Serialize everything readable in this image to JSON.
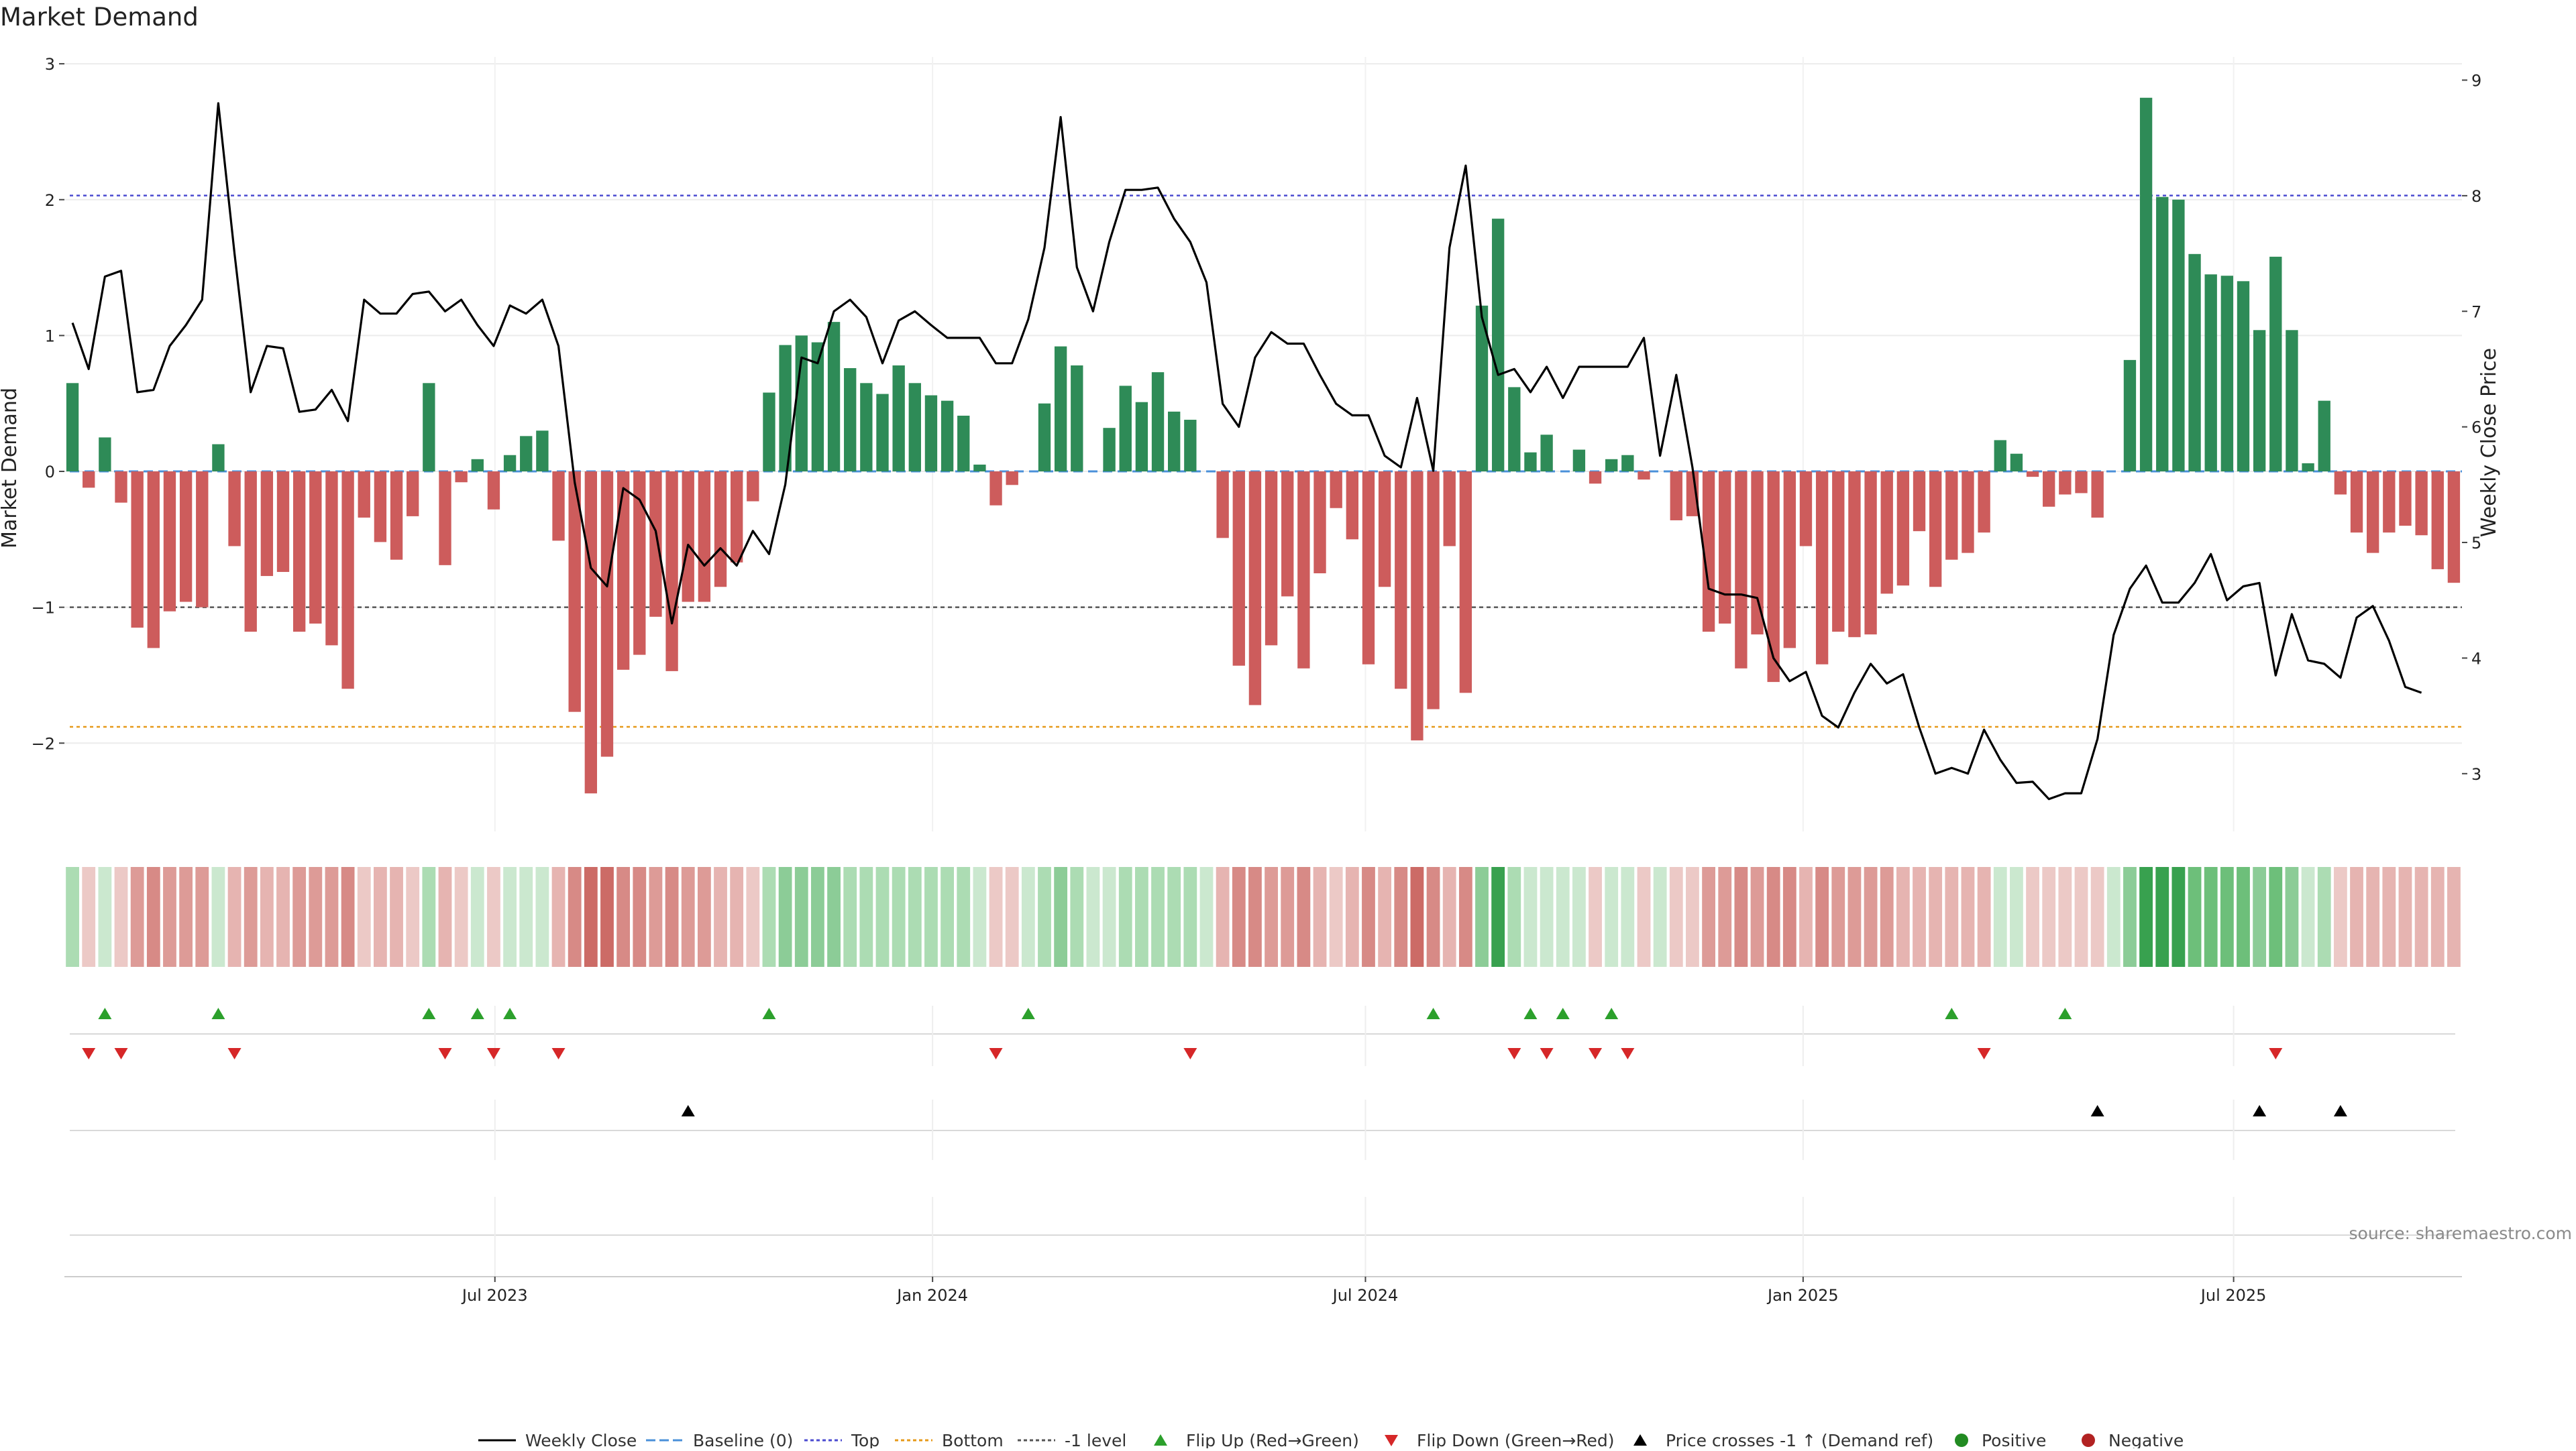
{
  "chart_data": {
    "type": "bar",
    "title": "Market Demand",
    "ylabel": "Market Demand",
    "y2label": "Weekly Close Price",
    "source": "source: sharemaestro.com",
    "ylim": [
      -2.65,
      3.05
    ],
    "y2lim": [
      2.5,
      9.2
    ],
    "yticks": [
      3,
      2,
      1,
      0,
      -1,
      -2
    ],
    "ytick_labels": [
      "3",
      "2",
      "1",
      "0",
      "−1",
      "−2"
    ],
    "y2ticks": [
      9,
      8,
      7,
      6,
      5,
      4,
      3
    ],
    "reference_lines": {
      "top": 2.03,
      "bottom": -1.88,
      "minus_one": -1,
      "baseline": 0
    },
    "x_start": "2023-01-01",
    "x_end": "2025-10-05",
    "x_tick_labels": [
      "Jul 2023",
      "Jan 2024",
      "Jul 2024",
      "Jan 2025",
      "Jul 2025"
    ],
    "x_tick_dates": [
      "2023-07-01",
      "2024-01-01",
      "2024-07-01",
      "2025-01-01",
      "2025-07-01"
    ],
    "demand": [
      0.65,
      -0.12,
      0.25,
      -0.23,
      -1.15,
      -1.3,
      -1.03,
      -0.96,
      -1,
      0.2,
      -0.55,
      -1.18,
      -0.77,
      -0.74,
      -1.18,
      -1.12,
      -1.28,
      -1.6,
      -0.34,
      -0.52,
      -0.65,
      -0.33,
      0.65,
      -0.69,
      -0.08,
      0.09,
      -0.28,
      0.12,
      0.26,
      0.3,
      -0.51,
      -1.77,
      -2.37,
      -2.1,
      -1.46,
      -1.35,
      -1.07,
      -1.47,
      -0.96,
      -0.96,
      -0.85,
      -0.67,
      -0.22,
      0.58,
      0.93,
      1.0,
      0.95,
      1.1,
      0.76,
      0.65,
      0.57,
      0.78,
      0.65,
      0.56,
      0.52,
      0.41,
      0.05,
      -0.25,
      -0.1,
      0.0,
      0.5,
      0.92,
      0.78,
      0.0,
      0.32,
      0.63,
      0.51,
      0.73,
      0.44,
      0.38,
      0.0,
      -0.49,
      -1.43,
      -1.72,
      -1.28,
      -0.92,
      -1.45,
      -0.75,
      -0.27,
      -0.5,
      -1.42,
      -0.85,
      -1.6,
      -1.98,
      -1.75,
      -0.55,
      -1.63,
      1.22,
      1.86,
      0.62,
      0.14,
      0.27,
      0.0,
      0.16,
      -0.09,
      0.09,
      0.12,
      -0.06,
      0.0,
      -0.36,
      -0.33,
      -1.18,
      -1.12,
      -1.45,
      -1.2,
      -1.55,
      -1.3,
      -0.55,
      -1.42,
      -1.18,
      -1.22,
      -1.2,
      -0.9,
      -0.84,
      -0.44,
      -0.85,
      -0.65,
      -0.6,
      -0.45,
      0.23,
      0.13,
      -0.04,
      -0.26,
      -0.17,
      -0.16,
      -0.34,
      0.0,
      0.82,
      2.75,
      2.02,
      2.0,
      1.6,
      1.45,
      1.44,
      1.4,
      1.04,
      1.58,
      1.04,
      0.06,
      0.52,
      -0.17,
      -0.45,
      -0.6,
      -0.45,
      -0.4,
      -0.47,
      -0.72,
      -0.82
    ],
    "weekly_close": [
      6.9,
      6.5,
      7.3,
      7.35,
      6.3,
      6.32,
      6.7,
      6.88,
      7.1,
      8.8,
      7.5,
      6.3,
      6.7,
      6.68,
      6.13,
      6.15,
      6.32,
      6.05,
      7.1,
      6.98,
      6.98,
      7.15,
      7.17,
      7.0,
      7.1,
      6.88,
      6.7,
      7.05,
      6.98,
      7.1,
      6.7,
      5.52,
      4.78,
      4.62,
      5.47,
      5.37,
      5.1,
      4.3,
      4.98,
      4.8,
      4.95,
      4.8,
      5.1,
      4.9,
      5.5,
      6.6,
      6.55,
      7.0,
      7.1,
      6.95,
      6.55,
      6.92,
      7.0,
      6.88,
      6.77,
      6.77,
      6.77,
      6.55,
      6.55,
      6.93,
      7.55,
      8.68,
      7.38,
      7.0,
      7.6,
      8.05,
      8.05,
      8.07,
      7.8,
      7.6,
      7.25,
      6.2,
      6.0,
      6.6,
      6.82,
      6.72,
      6.72,
      6.45,
      6.2,
      6.1,
      6.1,
      5.75,
      5.65,
      6.25,
      5.62,
      7.55,
      8.26,
      6.95,
      6.45,
      6.5,
      6.3,
      6.52,
      6.25,
      6.52,
      6.52,
      6.52,
      6.52,
      6.77,
      5.75,
      6.45,
      5.65,
      4.6,
      4.55,
      4.55,
      4.52,
      4.0,
      3.8,
      3.88,
      3.5,
      3.4,
      3.7,
      3.95,
      3.78,
      3.86,
      3.4,
      3.0,
      3.05,
      3.0,
      3.38,
      3.12,
      2.92,
      2.93,
      2.78,
      2.83,
      2.83,
      3.3,
      4.2,
      4.6,
      4.8,
      4.48,
      4.48,
      4.65,
      4.9,
      4.5,
      4.62,
      4.65,
      3.85,
      4.38,
      3.98,
      3.95,
      3.83,
      4.35,
      4.45,
      4.15,
      3.75,
      3.7
    ],
    "flip_up_weeks": [
      2,
      9,
      22,
      25,
      27,
      43,
      59,
      84,
      90,
      92,
      95,
      116,
      123
    ],
    "flip_down_weeks": [
      1,
      3,
      10,
      23,
      26,
      30,
      57,
      69,
      89,
      91,
      94,
      96,
      118,
      136
    ],
    "price_cross_weeks": [
      38,
      125,
      135,
      140
    ],
    "legend": [
      "Weekly Close",
      "Baseline (0)",
      "Top",
      "Bottom",
      "-1 level",
      "Flip Up (Red→Green)",
      "Flip Down (Green→Red)",
      "Price crosses -1 ↑ (Demand ref)",
      "Positive",
      "Negative"
    ],
    "colors": {
      "positive": "#2e8b57",
      "negative": "#cd5c5c",
      "price": "#000000",
      "baseline": "#4a90d9",
      "top": "#4b4bd0",
      "bottom": "#e69a1a",
      "minus_one": "#555555",
      "flip_up": "#2ca02c",
      "flip_down": "#d62728",
      "cross": "#000000",
      "legend_positive": "#228b22",
      "legend_negative": "#b22222"
    }
  }
}
